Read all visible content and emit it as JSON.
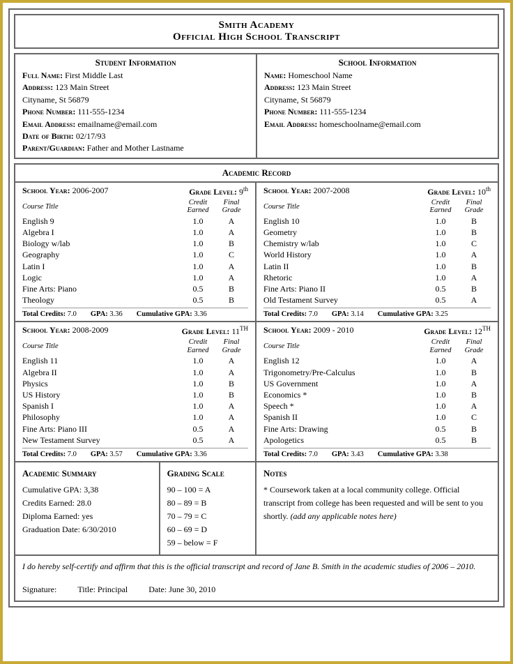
{
  "header": {
    "line1": "Smith Academy",
    "line2": "Official High School Transcript"
  },
  "student": {
    "title": "Student Information",
    "fields": [
      {
        "label": "Full Name:",
        "value": "First Middle Last"
      },
      {
        "label": "Address:",
        "value": "123 Main Street"
      },
      {
        "label": "",
        "value": "Cityname, St  56879"
      },
      {
        "label": "Phone Number:",
        "value": "111-555-1234"
      },
      {
        "label": "Email Address:",
        "value": "emailname@email.com"
      },
      {
        "label": "Date of Birth:",
        "value": "02/17/93"
      },
      {
        "label": "Parent/Guardian:",
        "value": "Father and Mother Lastname"
      }
    ]
  },
  "school": {
    "title": "School Information",
    "fields": [
      {
        "label": "Name:",
        "value": "Homeschool Name"
      },
      {
        "label": "Address:",
        "value": "123 Main Street"
      },
      {
        "label": "",
        "value": "Cityname, St  56879"
      },
      {
        "label": "Phone Number:",
        "value": "111-555-1234"
      },
      {
        "label": "Email Address:",
        "value": "homeschoolname@email.com"
      }
    ]
  },
  "academic_title": "Academic Record",
  "years": [
    {
      "year_lbl": "School Year:",
      "year": "2006-2007",
      "grade_lbl": "Grade Level:",
      "grade": "9",
      "sup": "th",
      "col1": "Course Title",
      "col2a": "Credit",
      "col2b": "Earned",
      "col3a": "Final",
      "col3b": "Grade",
      "courses": [
        [
          "English 9",
          "1.0",
          "A"
        ],
        [
          "Algebra I",
          "1.0",
          "A"
        ],
        [
          "Biology w/lab",
          "1.0",
          "B"
        ],
        [
          "Geography",
          "1.0",
          "C"
        ],
        [
          "Latin I",
          "1.0",
          "A"
        ],
        [
          "Logic",
          "1.0",
          "A"
        ],
        [
          "Fine Arts: Piano",
          "0.5",
          "B"
        ],
        [
          "Theology",
          "0.5",
          "B"
        ]
      ],
      "totals": {
        "tc_lbl": "Total Credits:",
        "tc": "7.0",
        "gpa_lbl": "GPA:",
        "gpa": "3.36",
        "cum_lbl": "Cumulative GPA:",
        "cum": "3.36"
      }
    },
    {
      "year_lbl": "School Year:",
      "year": "2007-2008",
      "grade_lbl": "Grade Level:",
      "grade": "10",
      "sup": "th",
      "col1": "Course Title",
      "col2a": "Credit",
      "col2b": "Earned",
      "col3a": "Final",
      "col3b": "Grade",
      "courses": [
        [
          "English 10",
          "1.0",
          "B"
        ],
        [
          "Geometry",
          "1.0",
          "B"
        ],
        [
          "Chemistry w/lab",
          "1.0",
          "C"
        ],
        [
          "World History",
          "1.0",
          "A"
        ],
        [
          "Latin II",
          "1.0",
          "B"
        ],
        [
          "Rhetoric",
          "1.0",
          "A"
        ],
        [
          "Fine Arts: Piano II",
          "0.5",
          "B"
        ],
        [
          "Old Testament Survey",
          "0.5",
          "A"
        ]
      ],
      "totals": {
        "tc_lbl": "Total Credits:",
        "tc": "7.0",
        "gpa_lbl": "GPA:",
        "gpa": "3.14",
        "cum_lbl": "Cumulative GPA:",
        "cum": "3.25"
      }
    },
    {
      "year_lbl": "School Year:",
      "year": "2008-2009",
      "grade_lbl": "Grade Level:",
      "grade": "11",
      "sup": "TH",
      "col1": "Course Title",
      "col2a": "Credit",
      "col2b": "Earned",
      "col3a": "Final",
      "col3b": "Grade",
      "courses": [
        [
          "English 11",
          "1.0",
          "A"
        ],
        [
          "Algebra II",
          "1.0",
          "A"
        ],
        [
          "Physics",
          "1.0",
          "B"
        ],
        [
          "US History",
          "1.0",
          "B"
        ],
        [
          "Spanish I",
          "1.0",
          "A"
        ],
        [
          "Philosophy",
          "1.0",
          "A"
        ],
        [
          "Fine Arts: Piano III",
          "0.5",
          "A"
        ],
        [
          "New Testament Survey",
          "0.5",
          "A"
        ]
      ],
      "totals": {
        "tc_lbl": "Total Credits:",
        "tc": "7.0",
        "gpa_lbl": "GPA:",
        "gpa": "3.57",
        "cum_lbl": "Cumulative GPA:",
        "cum": "3.36"
      }
    },
    {
      "year_lbl": "School Year:",
      "year": "2009 - 2010",
      "grade_lbl": "Grade Level:",
      "grade": "12",
      "sup": "TH",
      "col1": "Course Title",
      "col2a": "Credit",
      "col2b": "Earned",
      "col3a": "Final",
      "col3b": "Grade",
      "courses": [
        [
          "English 12",
          "1.0",
          "A"
        ],
        [
          "Trigonometry/Pre-Calculus",
          "1.0",
          "B"
        ],
        [
          "US Government",
          "1.0",
          "A"
        ],
        [
          "Economics *",
          "1.0",
          "B"
        ],
        [
          "Speech *",
          "1.0",
          "A"
        ],
        [
          "Spanish II",
          "1.0",
          "C"
        ],
        [
          "Fine Arts: Drawing",
          "0.5",
          "B"
        ],
        [
          "Apologetics",
          "0.5",
          "B"
        ]
      ],
      "totals": {
        "tc_lbl": "Total Credits:",
        "tc": "7.0",
        "gpa_lbl": "GPA:",
        "gpa": "3.43",
        "cum_lbl": "Cumulative GPA:",
        "cum": "3.38"
      }
    }
  ],
  "summary": {
    "title": "Academic Summary",
    "rows": [
      "Cumulative GPA: 3,38",
      "Credits Earned: 28.0",
      "Diploma Earned: yes",
      "Graduation Date: 6/30/2010"
    ]
  },
  "scale": {
    "title": "Grading Scale",
    "rows": [
      "90 – 100 = A",
      "80 – 89 = B",
      "70 – 79 = C",
      "60 – 69 = D",
      "59 – below = F"
    ]
  },
  "notes": {
    "title": "Notes",
    "body": "* Coursework taken at a local community college.  Official transcript from college has been requested and will be sent to you shortly. ",
    "italic": "(add any applicable notes here)"
  },
  "cert": {
    "stmt": "I do hereby self-certify and affirm that this is the official transcript and record of Jane B. Smith in the academic studies of 2006 – 2010.",
    "sig": "Signature:",
    "title_lbl": "Title: Principal",
    "date": "Date: June 30, 2010"
  }
}
